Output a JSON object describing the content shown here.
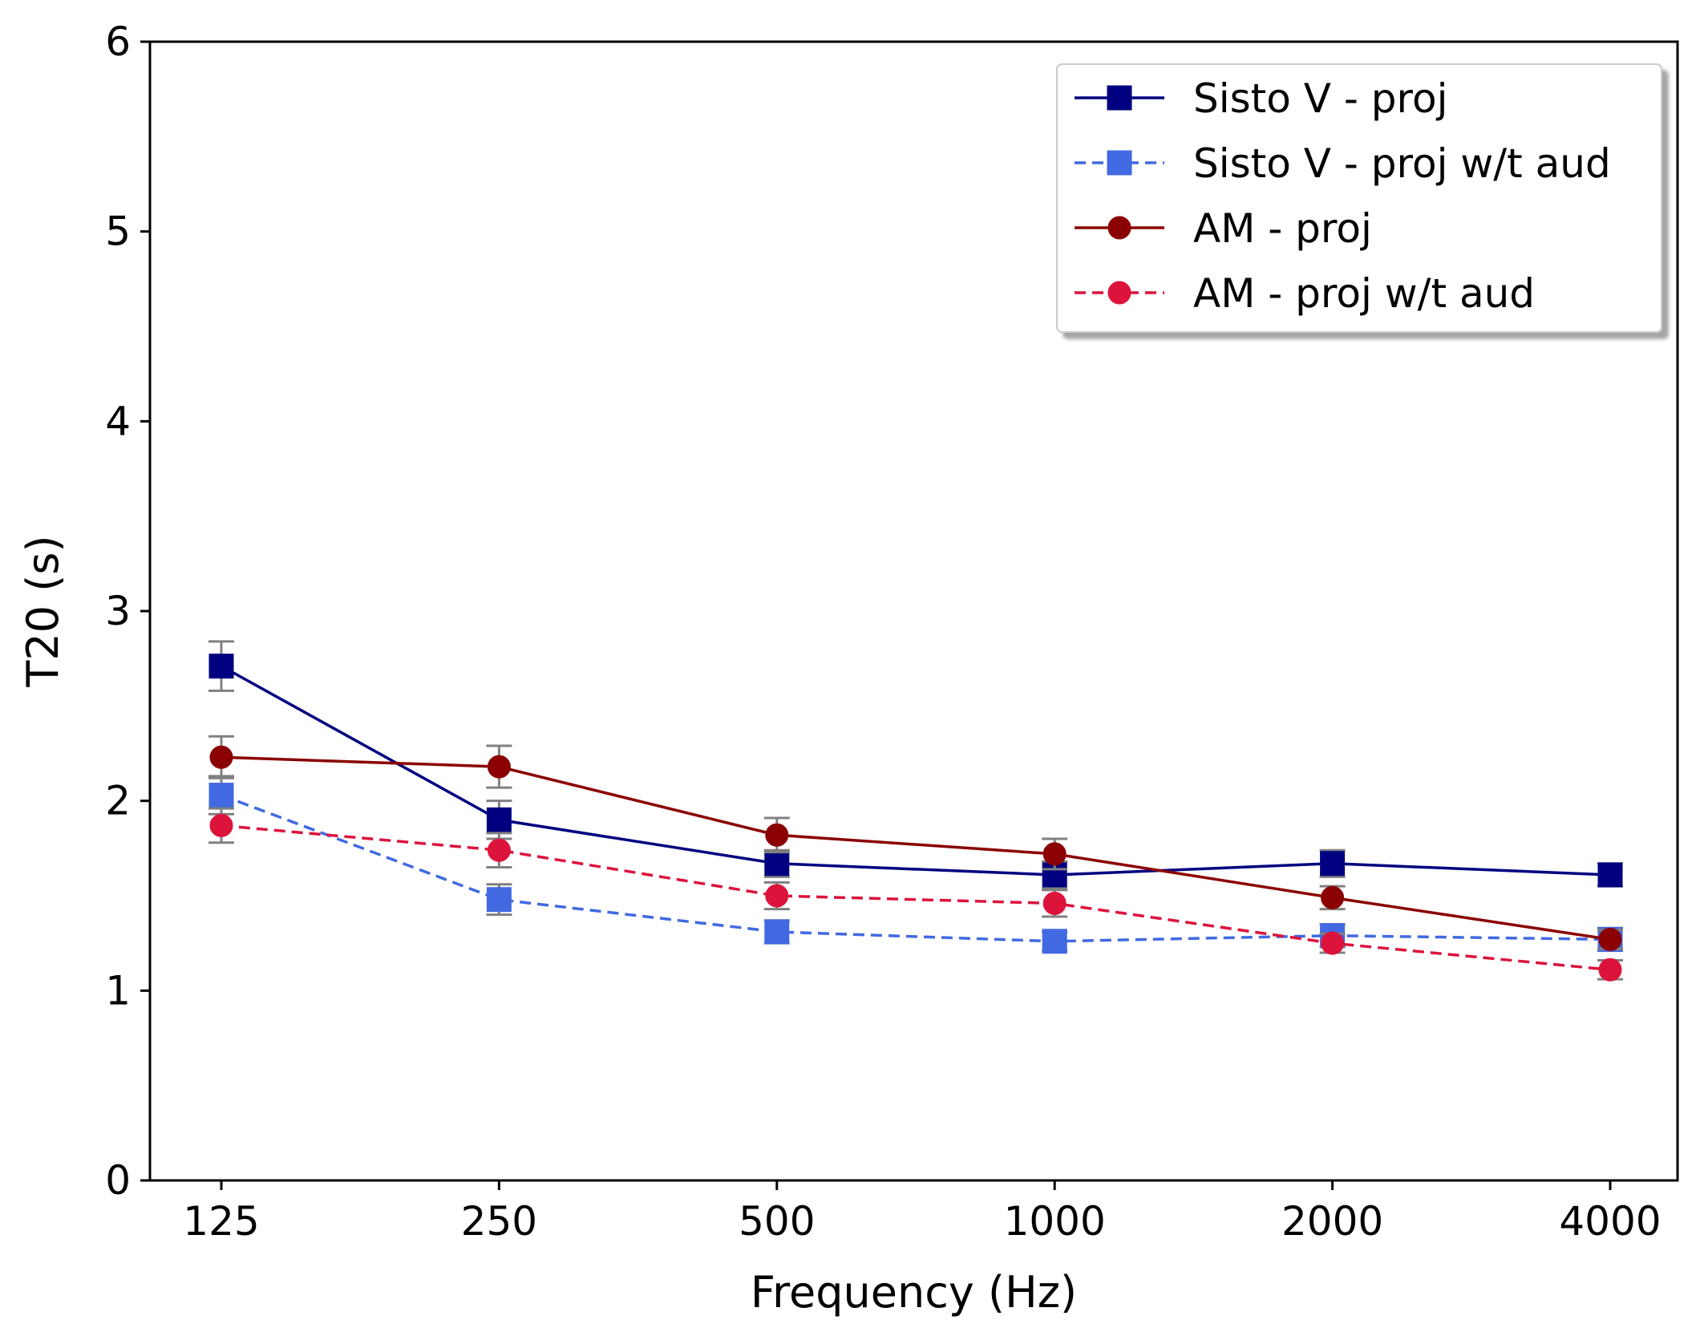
{
  "chart_data": {
    "type": "line",
    "title": "",
    "xlabel": "Frequency (Hz)",
    "ylabel": "T20 (s)",
    "categories": [
      "125",
      "250",
      "500",
      "1000",
      "2000",
      "4000"
    ],
    "ylim": [
      0,
      6
    ],
    "yticks": [
      "0",
      "1",
      "2",
      "3",
      "4",
      "5",
      "6"
    ],
    "grid": false,
    "legend_position": "top-right",
    "series": [
      {
        "name": "Sisto V - proj",
        "values": [
          2.71,
          1.9,
          1.67,
          1.61,
          1.67,
          1.61
        ],
        "errors": [
          0.13,
          0.1,
          0.07,
          0.07,
          0.07,
          0.06
        ],
        "color": "#000080",
        "dashed": false,
        "marker": "square"
      },
      {
        "name": "Sisto V - proj w/t aud",
        "values": [
          2.03,
          1.48,
          1.31,
          1.26,
          1.29,
          1.27
        ],
        "errors": [
          0.1,
          0.08,
          0.06,
          0.05,
          0.06,
          0.06
        ],
        "color": "#4169E1",
        "dashed": true,
        "marker": "square"
      },
      {
        "name": "AM - proj",
        "values": [
          2.23,
          2.18,
          1.82,
          1.72,
          1.49,
          1.27
        ],
        "errors": [
          0.11,
          0.11,
          0.09,
          0.08,
          0.06,
          0.05
        ],
        "color": "#8B0000",
        "dashed": false,
        "marker": "circle"
      },
      {
        "name": "AM - proj w/t aud",
        "values": [
          1.87,
          1.74,
          1.5,
          1.46,
          1.25,
          1.11
        ],
        "errors": [
          0.09,
          0.09,
          0.07,
          0.07,
          0.05,
          0.05
        ],
        "color": "#DC143C",
        "dashed": true,
        "marker": "circle"
      }
    ]
  }
}
